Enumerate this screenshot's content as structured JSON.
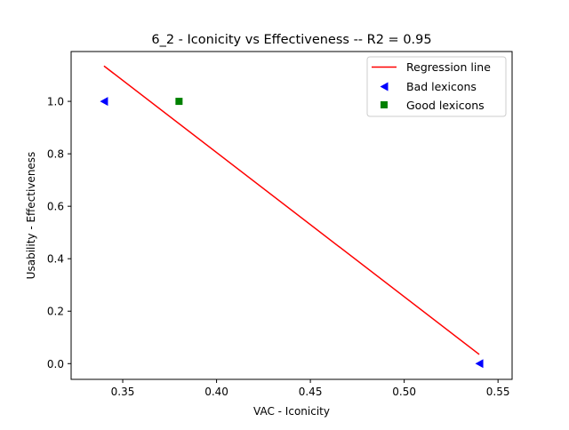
{
  "chart_data": {
    "type": "scatter",
    "title": "6_2 - Iconicity  vs  Effectiveness -- R2 = 0.95",
    "xlabel": "VAC - Iconicity",
    "ylabel": "Usability - Effectiveness",
    "xlim": [
      0.3225,
      0.5575
    ],
    "ylim": [
      -0.06,
      1.19
    ],
    "xticks": [
      0.35,
      0.4,
      0.45,
      0.5,
      0.55
    ],
    "xtick_labels": [
      "0.35",
      "0.40",
      "0.45",
      "0.50",
      "0.55"
    ],
    "yticks": [
      0.0,
      0.2,
      0.4,
      0.6,
      0.8,
      1.0
    ],
    "ytick_labels": [
      "0.0",
      "0.2",
      "0.4",
      "0.6",
      "0.8",
      "1.0"
    ],
    "grid": false,
    "legend_position": "upper right",
    "series": [
      {
        "name": "Regression line",
        "kind": "line",
        "color": "#ff0000",
        "points": [
          {
            "x": 0.34,
            "y": 1.135
          },
          {
            "x": 0.54,
            "y": 0.035
          }
        ]
      },
      {
        "name": "Bad lexicons",
        "kind": "scatter",
        "marker": "triangle-left",
        "color": "#0000ff",
        "points": [
          {
            "x": 0.34,
            "y": 1.0
          },
          {
            "x": 0.54,
            "y": 0.0
          }
        ]
      },
      {
        "name": "Good lexicons",
        "kind": "scatter",
        "marker": "square",
        "color": "#008000",
        "points": [
          {
            "x": 0.38,
            "y": 1.0
          }
        ]
      }
    ]
  }
}
